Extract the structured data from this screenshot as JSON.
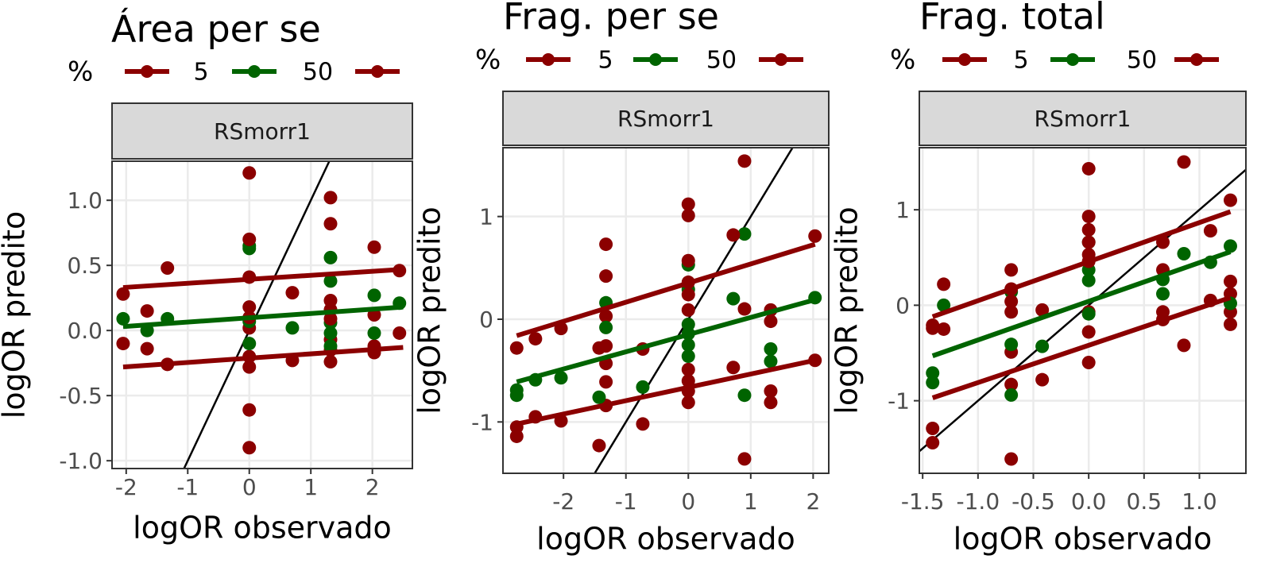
{
  "chart_data": [
    {
      "type": "scatter",
      "title": "Área per se",
      "strip": "RSmorr1",
      "xlabel": "logOR observado",
      "ylabel": "logOR predito",
      "legend_title": "%",
      "grid": true,
      "xlim": [
        -2.23,
        2.65
      ],
      "ylim": [
        -1.06,
        1.3
      ],
      "xticks": [
        -2,
        -1,
        0,
        1,
        2
      ],
      "yticks": [
        {
          "value": -1,
          "label": "-1.0"
        },
        -0.5,
        {
          "value": 0,
          "label": "0.0"
        },
        0.5,
        {
          "value": 1,
          "label": "1.0"
        }
      ],
      "series": [
        {
          "name": "5",
          "color": "#8b0000",
          "x": [
            -2.05,
            -1.66,
            -1.33,
            0,
            0,
            0,
            0,
            0,
            0.7,
            1.32,
            1.32,
            1.32,
            2.03,
            2.03,
            2.44
          ],
          "values": [
            -0.1,
            -0.14,
            -0.26,
            0.02,
            -0.2,
            -0.28,
            -0.61,
            -0.9,
            -0.23,
            -0.07,
            -0.15,
            -0.24,
            -0.12,
            -0.17,
            -0.02
          ],
          "fit": {
            "x": [
              -2.05,
              2.5
            ],
            "values": [
              -0.28,
              -0.13
            ]
          }
        },
        {
          "name": "50",
          "color": "#006400",
          "x": [
            -2.05,
            -1.66,
            -1.33,
            0,
            0,
            0,
            0,
            0.7,
            1.32,
            1.32,
            1.32,
            1.32,
            1.32,
            2.03,
            2.03,
            2.44
          ],
          "values": [
            0.09,
            0,
            0.09,
            0.65,
            0.63,
            0.07,
            -0.1,
            0.02,
            0.56,
            0.38,
            0.06,
            -0.02,
            -0.12,
            0.27,
            -0.02,
            0.21
          ],
          "fit": {
            "x": [
              -2.05,
              2.5
            ],
            "values": [
              0.03,
              0.18
            ]
          }
        },
        {
          "name": null,
          "color": "#8b0000",
          "x": [
            -2.05,
            -1.66,
            -1.33,
            0,
            0,
            0,
            0,
            0,
            0.7,
            1.32,
            1.32,
            1.32,
            1.32,
            1.32,
            2.03,
            2.03,
            2.44
          ],
          "values": [
            0.28,
            0.15,
            0.48,
            1.21,
            0.7,
            0.41,
            0.18,
            0.1,
            0.29,
            1.02,
            0.82,
            0.23,
            0.16,
            0.09,
            0.64,
            0.12,
            0.46
          ],
          "fit": {
            "x": [
              -2.05,
              2.5
            ],
            "values": [
              0.33,
              0.47
            ]
          }
        }
      ],
      "reference_line": {
        "color": "#000000",
        "x": [
          -1.06,
          1.3
        ],
        "values": [
          -1.06,
          1.3
        ]
      }
    },
    {
      "type": "scatter",
      "title": "Frag. per se",
      "strip": "RSmorr1",
      "xlabel": "logOR observado",
      "ylabel": "logOR predito",
      "legend_title": "%",
      "grid": true,
      "xlim": [
        -2.97,
        2.25
      ],
      "ylim": [
        -1.5,
        1.67
      ],
      "xticks": [
        -2,
        -1,
        0,
        1,
        2
      ],
      "yticks": [
        -1,
        0,
        1
      ],
      "series": [
        {
          "name": "5",
          "color": "#8b0000",
          "x": [
            -2.75,
            -2.75,
            -2.45,
            -2.04,
            -1.43,
            -1.32,
            -1.32,
            -1.32,
            -1.32,
            -1.32,
            -0.73,
            0,
            0,
            0,
            0,
            0.72,
            0.9,
            1.32,
            1.32,
            2.03
          ],
          "values": [
            -1.05,
            -1.14,
            -0.95,
            -0.99,
            -1.23,
            0.03,
            -0.26,
            -0.43,
            -0.61,
            -0.84,
            -1.02,
            -0.49,
            -0.6,
            -0.7,
            -0.81,
            -0.47,
            -1.36,
            -0.7,
            -0.81,
            -0.4
          ],
          "fit": {
            "x": [
              -2.75,
              2.03
            ],
            "values": [
              -1.02,
              -0.4
            ]
          }
        },
        {
          "name": "50",
          "color": "#006400",
          "x": [
            -2.75,
            -2.75,
            -2.45,
            -2.04,
            -1.43,
            -1.32,
            -1.32,
            -0.73,
            0,
            0,
            0,
            0,
            0,
            0,
            0.72,
            0.9,
            0.9,
            1.32,
            1.32,
            2.03
          ],
          "values": [
            -0.69,
            -0.74,
            -0.59,
            -0.57,
            -0.76,
            0.16,
            -0.08,
            -0.66,
            0.53,
            0.29,
            -0.05,
            -0.14,
            -0.25,
            -0.36,
            0.2,
            0.83,
            -0.74,
            -0.29,
            -0.41,
            0.21
          ],
          "fit": {
            "x": [
              -2.75,
              2.03
            ],
            "values": [
              -0.61,
              0.19
            ]
          }
        },
        {
          "name": null,
          "color": "#8b0000",
          "x": [
            -2.75,
            -2.45,
            -2.04,
            -1.43,
            -1.32,
            -1.32,
            -0.73,
            0,
            0,
            0,
            0,
            0,
            0,
            0.72,
            0.9,
            0.9,
            1.32,
            1.32,
            2.03
          ],
          "values": [
            -0.28,
            -0.19,
            -0.09,
            -0.28,
            0.73,
            0.42,
            -0.29,
            1.12,
            1.01,
            0.57,
            0.36,
            0.24,
            0.09,
            0.82,
            1.54,
            0.1,
            0.09,
            -0.02,
            0.81
          ],
          "fit": {
            "x": [
              -2.75,
              2.03
            ],
            "values": [
              -0.16,
              0.73
            ]
          }
        }
      ],
      "reference_line": {
        "color": "#000000",
        "x": [
          -1.5,
          1.67
        ],
        "values": [
          -1.5,
          1.67
        ]
      }
    },
    {
      "type": "scatter",
      "title": "Frag. total",
      "strip": "RSmorr1",
      "xlabel": "logOR observado",
      "ylabel": "logOR predito",
      "legend_title": "%",
      "grid": true,
      "xlim": [
        -1.53,
        1.42
      ],
      "ylim": [
        -1.76,
        1.65
      ],
      "xticks": [
        -1.5,
        {
          "value": -1,
          "label": "-1.0"
        },
        -0.5,
        {
          "value": 0,
          "label": "0.0"
        },
        0.5,
        {
          "value": 1,
          "label": "1.0"
        }
      ],
      "yticks": [
        -1,
        0,
        1
      ],
      "series": [
        {
          "name": "5",
          "color": "#8b0000",
          "x": [
            -1.41,
            -1.41,
            -1.31,
            -0.7,
            -0.7,
            -0.7,
            -0.7,
            -0.42,
            0,
            0,
            0,
            0.67,
            0.67,
            0.86,
            1.1,
            1.28,
            1.28,
            1.28
          ],
          "values": [
            -1.29,
            -1.44,
            -0.25,
            -0.07,
            -0.49,
            -0.83,
            -1.61,
            -0.78,
            -0.07,
            -0.28,
            -0.6,
            -0.07,
            -0.15,
            -0.42,
            0.05,
            0.12,
            -0.07,
            -0.2
          ],
          "fit": {
            "x": [
              -1.41,
              1.28
            ],
            "values": [
              -0.97,
              0.08
            ]
          }
        },
        {
          "name": "50",
          "color": "#006400",
          "x": [
            -1.41,
            -1.41,
            -1.31,
            -0.7,
            -0.7,
            -0.7,
            -0.42,
            0,
            0,
            0,
            0,
            0.67,
            0.67,
            0.86,
            1.1,
            1.28,
            1.28
          ],
          "values": [
            -0.71,
            -0.81,
            0,
            0.14,
            -0.41,
            -0.94,
            -0.43,
            0.66,
            0.37,
            0.26,
            -0.09,
            0.27,
            0.12,
            0.54,
            0.45,
            0.62,
            0.02
          ],
          "fit": {
            "x": [
              -1.41,
              1.28
            ],
            "values": [
              -0.53,
              0.56
            ]
          }
        },
        {
          "name": null,
          "color": "#8b0000",
          "x": [
            -1.41,
            -1.41,
            -1.31,
            -0.7,
            -0.7,
            -0.7,
            -0.42,
            0,
            0,
            0,
            0,
            0,
            0,
            0.67,
            0.67,
            0.86,
            1.1,
            1.28,
            1.28
          ],
          "values": [
            -0.21,
            -0.24,
            0.22,
            0.37,
            0.17,
            0.04,
            -0.05,
            1.43,
            0.93,
            0.79,
            0.66,
            0.53,
            0.46,
            0.66,
            0.37,
            1.5,
            0.78,
            1.1,
            0.25
          ],
          "fit": {
            "x": [
              -1.41,
              1.28
            ],
            "values": [
              -0.12,
              0.98
            ]
          }
        }
      ],
      "reference_line": {
        "color": "#000000",
        "x": [
          -1.53,
          1.42
        ],
        "values": [
          -1.53,
          1.42
        ]
      }
    }
  ]
}
